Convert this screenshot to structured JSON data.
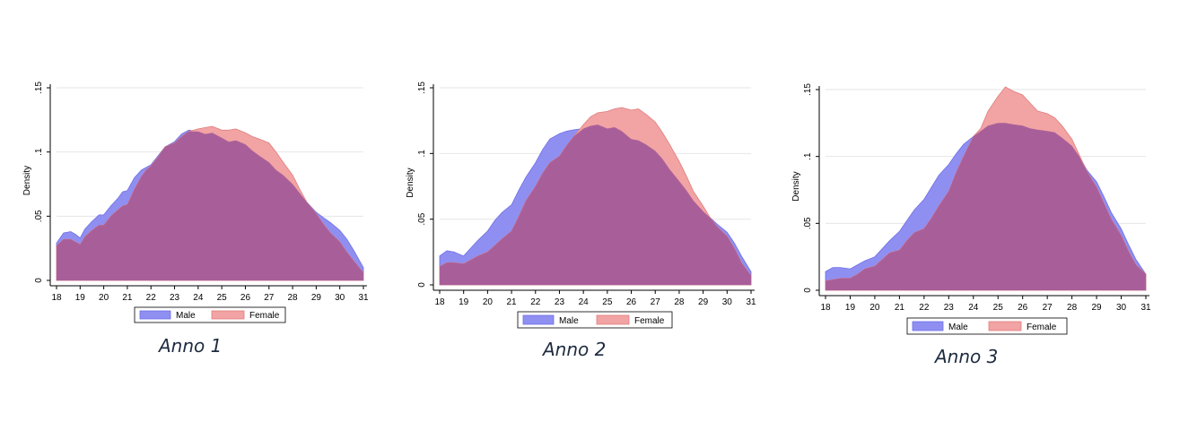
{
  "colors": {
    "male_fill": "#8f8ff2",
    "male_stroke": "#6f6fe6",
    "female_fill": "#f2a3a3",
    "female_stroke": "#e07e7e",
    "overlap_fill": "#a85f99",
    "grid": "#e6e6e6",
    "axis": "#000000"
  },
  "chart_data": [
    {
      "type": "area",
      "subtitle": "Anno 1",
      "xlabel": "",
      "ylabel": "Density",
      "xlim": [
        18,
        31
      ],
      "ylim": [
        0,
        0.15
      ],
      "xticks": [
        "18",
        "19",
        "20",
        "21",
        "22",
        "23",
        "24",
        "25",
        "26",
        "27",
        "28",
        "29",
        "30",
        "31"
      ],
      "yticks": [
        "0",
        ".05",
        ".1",
        ".15"
      ],
      "ytick_values": [
        0,
        0.05,
        0.1,
        0.15
      ],
      "grid": true,
      "legend": "bottom-center",
      "series": [
        {
          "name": "Male",
          "x": [
            18,
            18.3,
            18.6,
            18.8,
            19,
            19.2,
            19.5,
            19.8,
            20,
            20.3,
            20.6,
            20.8,
            21,
            21.3,
            21.6,
            21.8,
            22,
            22.3,
            22.6,
            23,
            23.3,
            23.6,
            24,
            24.3,
            24.6,
            25,
            25.3,
            25.6,
            26,
            26.3,
            26.6,
            27,
            27.3,
            27.6,
            28,
            28.3,
            28.6,
            29,
            29.3,
            29.6,
            30,
            30.3,
            30.6,
            31
          ],
          "y": [
            0.029,
            0.037,
            0.038,
            0.036,
            0.033,
            0.04,
            0.046,
            0.051,
            0.051,
            0.058,
            0.064,
            0.069,
            0.07,
            0.08,
            0.086,
            0.088,
            0.09,
            0.097,
            0.104,
            0.108,
            0.114,
            0.117,
            0.116,
            0.114,
            0.115,
            0.111,
            0.108,
            0.109,
            0.106,
            0.101,
            0.097,
            0.092,
            0.086,
            0.082,
            0.075,
            0.068,
            0.061,
            0.053,
            0.049,
            0.045,
            0.039,
            0.032,
            0.023,
            0.01
          ]
        },
        {
          "name": "Female",
          "x": [
            18,
            18.3,
            18.6,
            18.8,
            19,
            19.2,
            19.5,
            19.8,
            20,
            20.3,
            20.6,
            20.8,
            21,
            21.3,
            21.6,
            21.8,
            22,
            22.3,
            22.6,
            23,
            23.3,
            23.6,
            24,
            24.3,
            24.6,
            25,
            25.3,
            25.6,
            26,
            26.3,
            26.6,
            27,
            27.3,
            27.6,
            28,
            28.3,
            28.6,
            29,
            29.3,
            29.6,
            30,
            30.3,
            30.6,
            31
          ],
          "y": [
            0.027,
            0.032,
            0.032,
            0.03,
            0.028,
            0.034,
            0.039,
            0.043,
            0.043,
            0.05,
            0.055,
            0.058,
            0.059,
            0.071,
            0.081,
            0.086,
            0.089,
            0.096,
            0.104,
            0.107,
            0.112,
            0.116,
            0.118,
            0.119,
            0.12,
            0.117,
            0.117,
            0.118,
            0.115,
            0.112,
            0.11,
            0.107,
            0.1,
            0.092,
            0.082,
            0.071,
            0.061,
            0.052,
            0.044,
            0.037,
            0.03,
            0.022,
            0.015,
            0.006
          ]
        }
      ]
    },
    {
      "type": "area",
      "subtitle": "Anno 2",
      "xlabel": "",
      "ylabel": "Density",
      "xlim": [
        18,
        31
      ],
      "ylim": [
        0,
        0.15
      ],
      "xticks": [
        "18",
        "19",
        "20",
        "21",
        "22",
        "23",
        "24",
        "25",
        "26",
        "27",
        "28",
        "29",
        "30",
        "31"
      ],
      "yticks": [
        "0",
        ".05",
        ".1",
        ".15"
      ],
      "ytick_values": [
        0,
        0.05,
        0.1,
        0.15
      ],
      "grid": true,
      "legend": "bottom-center",
      "series": [
        {
          "name": "Male",
          "x": [
            18,
            18.3,
            18.6,
            19,
            19.3,
            19.6,
            20,
            20.3,
            20.6,
            21,
            21.3,
            21.6,
            22,
            22.3,
            22.6,
            23,
            23.3,
            23.6,
            24,
            24.3,
            24.6,
            25,
            25.3,
            25.6,
            26,
            26.3,
            26.6,
            27,
            27.3,
            27.6,
            28,
            28.3,
            28.6,
            29,
            29.3,
            29.6,
            30,
            30.3,
            30.6,
            31
          ],
          "y": [
            0.022,
            0.026,
            0.025,
            0.022,
            0.028,
            0.034,
            0.041,
            0.049,
            0.055,
            0.061,
            0.072,
            0.082,
            0.093,
            0.103,
            0.111,
            0.115,
            0.117,
            0.118,
            0.119,
            0.121,
            0.122,
            0.119,
            0.12,
            0.117,
            0.111,
            0.11,
            0.107,
            0.102,
            0.096,
            0.088,
            0.079,
            0.072,
            0.064,
            0.056,
            0.051,
            0.046,
            0.04,
            0.032,
            0.022,
            0.01
          ]
        },
        {
          "name": "Female",
          "x": [
            18,
            18.3,
            18.6,
            19,
            19.3,
            19.6,
            20,
            20.3,
            20.6,
            21,
            21.3,
            21.6,
            22,
            22.3,
            22.6,
            23,
            23.3,
            23.6,
            24,
            24.3,
            24.6,
            25,
            25.3,
            25.6,
            26,
            26.3,
            26.6,
            27,
            27.3,
            27.6,
            28,
            28.3,
            28.6,
            29,
            29.3,
            29.6,
            30,
            30.3,
            30.6,
            31
          ],
          "y": [
            0.014,
            0.017,
            0.017,
            0.016,
            0.019,
            0.022,
            0.025,
            0.03,
            0.035,
            0.041,
            0.052,
            0.064,
            0.075,
            0.085,
            0.093,
            0.098,
            0.106,
            0.113,
            0.122,
            0.128,
            0.131,
            0.132,
            0.134,
            0.135,
            0.133,
            0.134,
            0.13,
            0.124,
            0.116,
            0.107,
            0.094,
            0.083,
            0.071,
            0.06,
            0.051,
            0.044,
            0.037,
            0.028,
            0.017,
            0.007
          ]
        }
      ]
    },
    {
      "type": "area",
      "subtitle": "Anno 3",
      "xlabel": "",
      "ylabel": "Density",
      "xlim": [
        18,
        31
      ],
      "ylim": [
        0,
        0.15
      ],
      "xticks": [
        "18",
        "19",
        "20",
        "21",
        "22",
        "23",
        "24",
        "25",
        "26",
        "27",
        "28",
        "29",
        "30",
        "31"
      ],
      "yticks": [
        "0",
        ".05",
        ".1",
        ".15"
      ],
      "ytick_values": [
        0,
        0.05,
        0.1,
        0.15
      ],
      "grid": true,
      "legend": "bottom-center",
      "series": [
        {
          "name": "Male",
          "x": [
            18,
            18.3,
            18.6,
            19,
            19.3,
            19.6,
            20,
            20.3,
            20.6,
            21,
            21.3,
            21.6,
            22,
            22.3,
            22.6,
            23,
            23.3,
            23.6,
            24,
            24.3,
            24.6,
            25,
            25.3,
            25.6,
            26,
            26.3,
            26.6,
            27,
            27.3,
            27.6,
            28,
            28.3,
            28.6,
            29,
            29.3,
            29.6,
            30,
            30.3,
            30.6,
            31
          ],
          "y": [
            0.014,
            0.017,
            0.017,
            0.016,
            0.019,
            0.022,
            0.025,
            0.031,
            0.037,
            0.044,
            0.052,
            0.06,
            0.068,
            0.077,
            0.086,
            0.094,
            0.102,
            0.109,
            0.115,
            0.119,
            0.123,
            0.125,
            0.125,
            0.124,
            0.123,
            0.121,
            0.12,
            0.119,
            0.118,
            0.114,
            0.108,
            0.1,
            0.09,
            0.081,
            0.07,
            0.058,
            0.046,
            0.034,
            0.023,
            0.012
          ]
        },
        {
          "name": "Female",
          "x": [
            18,
            18.3,
            18.6,
            19,
            19.3,
            19.6,
            20,
            20.3,
            20.6,
            21,
            21.3,
            21.6,
            22,
            22.3,
            22.6,
            23,
            23.3,
            23.6,
            24,
            24.3,
            24.6,
            25,
            25.3,
            25.6,
            26,
            26.3,
            26.6,
            27,
            27.3,
            27.6,
            28,
            28.3,
            28.6,
            29,
            29.3,
            29.6,
            30,
            30.3,
            30.6,
            31
          ],
          "y": [
            0.007,
            0.008,
            0.009,
            0.009,
            0.012,
            0.016,
            0.018,
            0.023,
            0.028,
            0.03,
            0.037,
            0.043,
            0.046,
            0.054,
            0.063,
            0.074,
            0.088,
            0.1,
            0.115,
            0.121,
            0.134,
            0.145,
            0.152,
            0.149,
            0.146,
            0.14,
            0.134,
            0.132,
            0.129,
            0.123,
            0.113,
            0.101,
            0.089,
            0.077,
            0.065,
            0.053,
            0.041,
            0.029,
            0.019,
            0.012
          ]
        }
      ]
    }
  ]
}
